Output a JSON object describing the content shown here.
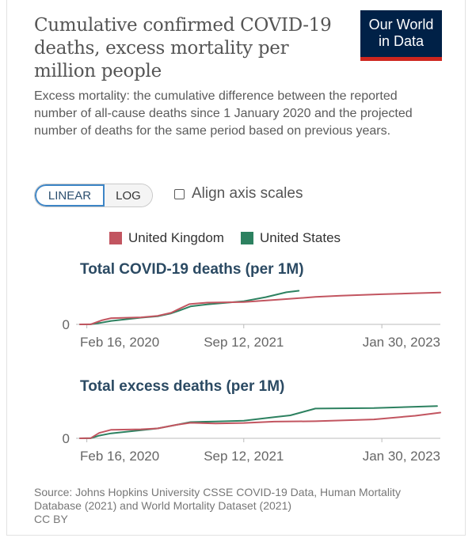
{
  "header": {
    "title": "Cumulative confirmed COVID-19 deaths, excess mortality per million people",
    "subtitle": "Excess mortality: the cumulative difference between the reported number of all-cause deaths since 1 January 2020 and the projected number of deaths for the same period based on previous years.",
    "logo_line1": "Our World",
    "logo_line2": "in Data",
    "logo_bg": "#002147",
    "logo_accent": "#ce261e"
  },
  "controls": {
    "linear_label": "LINEAR",
    "log_label": "LOG",
    "align_label": "Align axis scales",
    "align_checked": false,
    "selected": "LINEAR"
  },
  "legend": [
    {
      "name": "United Kingdom",
      "color": "#c25560"
    },
    {
      "name": "United States",
      "color": "#2d8160"
    }
  ],
  "chart_data": [
    {
      "type": "line",
      "title": "Total COVID-19 deaths (per 1M)",
      "x_tick_labels": [
        "Feb 16, 2020",
        "Sep 12, 2021",
        "Jan 30, 2023"
      ],
      "xlim": [
        "2020-01-22",
        "2023-09-01"
      ],
      "y_tick_labels": [
        "0"
      ],
      "grid": false,
      "series": [
        {
          "name": "United Kingdom",
          "color": "#c25560",
          "x": [
            "2020-01-22",
            "2020-03-01",
            "2020-04-10",
            "2020-05-15",
            "2020-09-01",
            "2020-11-01",
            "2020-12-20",
            "2021-01-20",
            "2021-02-25",
            "2021-05-01",
            "2021-09-12",
            "2022-01-15",
            "2022-06-01",
            "2022-09-01",
            "2023-01-30",
            "2023-06-01",
            "2023-09-01"
          ],
          "values": [
            0,
            5,
            350,
            540,
            610,
            740,
            1000,
            1350,
            1750,
            1880,
            1930,
            2130,
            2370,
            2470,
            2600,
            2690,
            2750
          ]
        },
        {
          "name": "United States",
          "color": "#2d8160",
          "x": [
            "2020-01-22",
            "2020-03-01",
            "2020-04-10",
            "2020-05-15",
            "2020-09-01",
            "2020-11-01",
            "2020-12-20",
            "2021-01-20",
            "2021-03-01",
            "2021-05-01",
            "2021-09-12",
            "2021-12-01",
            "2022-02-15",
            "2022-04-01"
          ],
          "values": [
            0,
            5,
            150,
            300,
            580,
            700,
            950,
            1200,
            1550,
            1730,
            2000,
            2350,
            2770,
            2900
          ]
        }
      ]
    },
    {
      "type": "line",
      "title": "Total excess deaths (per 1M)",
      "x_tick_labels": [
        "Feb 16, 2020",
        "Sep 12, 2021",
        "Jan 30, 2023"
      ],
      "xlim": [
        "2020-01-22",
        "2023-09-01"
      ],
      "y_tick_labels": [
        "0"
      ],
      "grid": false,
      "series": [
        {
          "name": "United Kingdom",
          "color": "#c25560",
          "x": [
            "2020-01-01",
            "2020-03-01",
            "2020-04-01",
            "2020-05-15",
            "2020-09-01",
            "2020-11-01",
            "2021-01-10",
            "2021-03-01",
            "2021-06-01",
            "2021-09-12",
            "2022-01-01",
            "2022-06-01",
            "2023-01-01",
            "2023-06-01",
            "2023-09-01"
          ],
          "values": [
            0,
            20,
            600,
            950,
            1000,
            1100,
            1500,
            1720,
            1650,
            1700,
            1850,
            1900,
            2100,
            2500,
            2850
          ]
        },
        {
          "name": "United States",
          "color": "#2d8160",
          "x": [
            "2020-01-01",
            "2020-03-01",
            "2020-04-01",
            "2020-05-15",
            "2020-09-01",
            "2020-11-01",
            "2021-01-10",
            "2021-03-01",
            "2021-06-01",
            "2021-09-12",
            "2022-01-01",
            "2022-03-01",
            "2022-06-01",
            "2023-01-01",
            "2023-06-01",
            "2023-08-20"
          ],
          "values": [
            0,
            10,
            300,
            550,
            900,
            1100,
            1500,
            1800,
            1870,
            1950,
            2350,
            2550,
            3300,
            3350,
            3500,
            3580
          ]
        }
      ]
    }
  ],
  "source": {
    "text": "Source: Johns Hopkins University CSSE COVID-19 Data, Human Mortality Database (2021) and World Mortality Dataset (2021)",
    "license": "CC BY"
  }
}
